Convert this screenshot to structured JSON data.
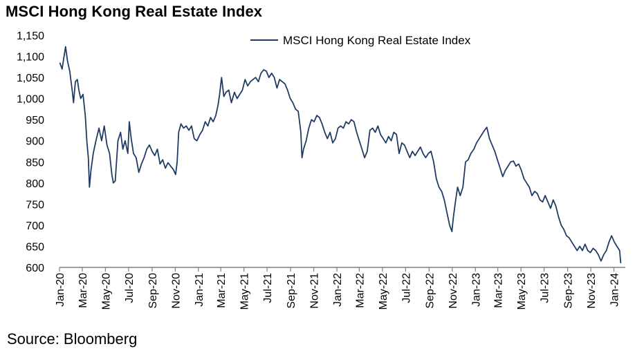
{
  "title": "MSCI Hong Kong Real Estate Index",
  "source": "Source: Bloomberg",
  "colors": {
    "series": "#1f3b64",
    "axis": "#7f7f7f"
  },
  "chart_data": {
    "type": "line",
    "title": "MSCI Hong Kong Real Estate Index",
    "xlabel": "",
    "ylabel": "",
    "ylim": [
      600,
      1150
    ],
    "yticks": [
      600,
      650,
      700,
      750,
      800,
      850,
      900,
      950,
      1000,
      1050,
      1100,
      1150
    ],
    "ytick_labels": [
      "600",
      "650",
      "700",
      "750",
      "800",
      "850",
      "900",
      "950",
      "1,000",
      "1,050",
      "1,100",
      "1,150"
    ],
    "xlim": [
      "2020-01-01",
      "2024-01-31"
    ],
    "xtick_labels": [
      "Jan-20",
      "Mar-20",
      "May-20",
      "Jul-20",
      "Sep-20",
      "Nov-20",
      "Jan-21",
      "Mar-21",
      "May-21",
      "Jul-21",
      "Sep-21",
      "Nov-21",
      "Jan-22",
      "Mar-22",
      "May-22",
      "Jul-22",
      "Sep-22",
      "Nov-22",
      "Jan-23",
      "Mar-23",
      "May-23",
      "Jul-23",
      "Sep-23",
      "Nov-23",
      "Jan-24"
    ],
    "xtick_dates": [
      "2020-01-01",
      "2020-03-01",
      "2020-05-01",
      "2020-07-01",
      "2020-09-01",
      "2020-11-01",
      "2021-01-01",
      "2021-03-01",
      "2021-05-01",
      "2021-07-01",
      "2021-09-01",
      "2021-11-01",
      "2022-01-01",
      "2022-03-01",
      "2022-05-01",
      "2022-07-01",
      "2022-09-01",
      "2022-11-01",
      "2023-01-01",
      "2023-03-01",
      "2023-05-01",
      "2023-07-01",
      "2023-09-01",
      "2023-11-01",
      "2024-01-01"
    ],
    "legend": "top-right",
    "grid": false,
    "series": [
      {
        "name": "MSCI Hong Kong Real Estate Index",
        "points": [
          [
            "2020-01-02",
            1085
          ],
          [
            "2020-01-08",
            1070
          ],
          [
            "2020-01-13",
            1100
          ],
          [
            "2020-01-17",
            1123
          ],
          [
            "2020-01-22",
            1090
          ],
          [
            "2020-01-28",
            1065
          ],
          [
            "2020-02-04",
            1015
          ],
          [
            "2020-02-07",
            990
          ],
          [
            "2020-02-12",
            1040
          ],
          [
            "2020-02-17",
            1045
          ],
          [
            "2020-02-21",
            1020
          ],
          [
            "2020-02-26",
            1000
          ],
          [
            "2020-03-03",
            1010
          ],
          [
            "2020-03-09",
            960
          ],
          [
            "2020-03-13",
            900
          ],
          [
            "2020-03-17",
            860
          ],
          [
            "2020-03-20",
            790
          ],
          [
            "2020-03-24",
            830
          ],
          [
            "2020-03-30",
            870
          ],
          [
            "2020-04-06",
            900
          ],
          [
            "2020-04-14",
            930
          ],
          [
            "2020-04-21",
            900
          ],
          [
            "2020-04-28",
            935
          ],
          [
            "2020-05-05",
            890
          ],
          [
            "2020-05-12",
            870
          ],
          [
            "2020-05-18",
            820
          ],
          [
            "2020-05-22",
            800
          ],
          [
            "2020-05-27",
            805
          ],
          [
            "2020-06-03",
            900
          ],
          [
            "2020-06-10",
            920
          ],
          [
            "2020-06-16",
            880
          ],
          [
            "2020-06-22",
            900
          ],
          [
            "2020-06-29",
            870
          ],
          [
            "2020-07-03",
            945
          ],
          [
            "2020-07-08",
            905
          ],
          [
            "2020-07-14",
            870
          ],
          [
            "2020-07-21",
            860
          ],
          [
            "2020-07-28",
            825
          ],
          [
            "2020-08-04",
            845
          ],
          [
            "2020-08-11",
            860
          ],
          [
            "2020-08-18",
            880
          ],
          [
            "2020-08-25",
            890
          ],
          [
            "2020-09-01",
            875
          ],
          [
            "2020-09-08",
            865
          ],
          [
            "2020-09-15",
            880
          ],
          [
            "2020-09-22",
            845
          ],
          [
            "2020-09-29",
            855
          ],
          [
            "2020-10-06",
            835
          ],
          [
            "2020-10-13",
            848
          ],
          [
            "2020-10-20",
            840
          ],
          [
            "2020-10-27",
            832
          ],
          [
            "2020-11-02",
            820
          ],
          [
            "2020-11-06",
            850
          ],
          [
            "2020-11-10",
            920
          ],
          [
            "2020-11-16",
            940
          ],
          [
            "2020-11-23",
            930
          ],
          [
            "2020-11-30",
            935
          ],
          [
            "2020-12-07",
            925
          ],
          [
            "2020-12-14",
            935
          ],
          [
            "2020-12-21",
            905
          ],
          [
            "2020-12-28",
            900
          ],
          [
            "2021-01-05",
            915
          ],
          [
            "2021-01-12",
            925
          ],
          [
            "2021-01-19",
            945
          ],
          [
            "2021-01-26",
            935
          ],
          [
            "2021-02-02",
            955
          ],
          [
            "2021-02-09",
            945
          ],
          [
            "2021-02-16",
            960
          ],
          [
            "2021-02-22",
            985
          ],
          [
            "2021-02-26",
            1010
          ],
          [
            "2021-03-03",
            1050
          ],
          [
            "2021-03-09",
            1005
          ],
          [
            "2021-03-15",
            1015
          ],
          [
            "2021-03-22",
            1020
          ],
          [
            "2021-03-29",
            990
          ],
          [
            "2021-04-06",
            1015
          ],
          [
            "2021-04-13",
            1000
          ],
          [
            "2021-04-20",
            1010
          ],
          [
            "2021-04-27",
            1020
          ],
          [
            "2021-05-04",
            1045
          ],
          [
            "2021-05-11",
            1030
          ],
          [
            "2021-05-18",
            1040
          ],
          [
            "2021-05-25",
            1045
          ],
          [
            "2021-06-01",
            1050
          ],
          [
            "2021-06-08",
            1040
          ],
          [
            "2021-06-15",
            1060
          ],
          [
            "2021-06-22",
            1068
          ],
          [
            "2021-06-29",
            1065
          ],
          [
            "2021-07-06",
            1050
          ],
          [
            "2021-07-13",
            1060
          ],
          [
            "2021-07-20",
            1050
          ],
          [
            "2021-07-27",
            1025
          ],
          [
            "2021-08-03",
            1045
          ],
          [
            "2021-08-10",
            1040
          ],
          [
            "2021-08-17",
            1035
          ],
          [
            "2021-08-24",
            1020
          ],
          [
            "2021-08-31",
            1000
          ],
          [
            "2021-09-07",
            990
          ],
          [
            "2021-09-14",
            975
          ],
          [
            "2021-09-21",
            970
          ],
          [
            "2021-09-24",
            950
          ],
          [
            "2021-09-28",
            920
          ],
          [
            "2021-10-01",
            860
          ],
          [
            "2021-10-05",
            880
          ],
          [
            "2021-10-12",
            900
          ],
          [
            "2021-10-19",
            930
          ],
          [
            "2021-10-26",
            950
          ],
          [
            "2021-11-02",
            945
          ],
          [
            "2021-11-09",
            960
          ],
          [
            "2021-11-16",
            955
          ],
          [
            "2021-11-23",
            940
          ],
          [
            "2021-11-30",
            920
          ],
          [
            "2021-12-07",
            905
          ],
          [
            "2021-12-14",
            920
          ],
          [
            "2021-12-21",
            895
          ],
          [
            "2021-12-28",
            905
          ],
          [
            "2022-01-04",
            930
          ],
          [
            "2022-01-11",
            935
          ],
          [
            "2022-01-18",
            930
          ],
          [
            "2022-01-25",
            945
          ],
          [
            "2022-02-01",
            940
          ],
          [
            "2022-02-08",
            950
          ],
          [
            "2022-02-15",
            945
          ],
          [
            "2022-02-22",
            920
          ],
          [
            "2022-03-01",
            900
          ],
          [
            "2022-03-08",
            880
          ],
          [
            "2022-03-15",
            860
          ],
          [
            "2022-03-22",
            875
          ],
          [
            "2022-03-29",
            925
          ],
          [
            "2022-04-05",
            930
          ],
          [
            "2022-04-12",
            920
          ],
          [
            "2022-04-19",
            935
          ],
          [
            "2022-04-26",
            915
          ],
          [
            "2022-05-03",
            905
          ],
          [
            "2022-05-10",
            895
          ],
          [
            "2022-05-17",
            910
          ],
          [
            "2022-05-24",
            900
          ],
          [
            "2022-05-31",
            920
          ],
          [
            "2022-06-07",
            915
          ],
          [
            "2022-06-14",
            870
          ],
          [
            "2022-06-21",
            895
          ],
          [
            "2022-06-28",
            890
          ],
          [
            "2022-07-05",
            875
          ],
          [
            "2022-07-12",
            860
          ],
          [
            "2022-07-19",
            875
          ],
          [
            "2022-07-26",
            865
          ],
          [
            "2022-08-02",
            875
          ],
          [
            "2022-08-09",
            885
          ],
          [
            "2022-08-16",
            870
          ],
          [
            "2022-08-23",
            860
          ],
          [
            "2022-08-30",
            870
          ],
          [
            "2022-09-06",
            875
          ],
          [
            "2022-09-13",
            850
          ],
          [
            "2022-09-20",
            810
          ],
          [
            "2022-09-27",
            790
          ],
          [
            "2022-10-04",
            780
          ],
          [
            "2022-10-11",
            760
          ],
          [
            "2022-10-18",
            730
          ],
          [
            "2022-10-25",
            700
          ],
          [
            "2022-10-31",
            685
          ],
          [
            "2022-11-04",
            720
          ],
          [
            "2022-11-10",
            760
          ],
          [
            "2022-11-15",
            790
          ],
          [
            "2022-11-22",
            770
          ],
          [
            "2022-11-29",
            790
          ],
          [
            "2022-12-06",
            850
          ],
          [
            "2022-12-13",
            855
          ],
          [
            "2022-12-20",
            870
          ],
          [
            "2022-12-28",
            880
          ],
          [
            "2023-01-04",
            895
          ],
          [
            "2023-01-11",
            905
          ],
          [
            "2023-01-18",
            915
          ],
          [
            "2023-01-25",
            925
          ],
          [
            "2023-01-31",
            932
          ],
          [
            "2023-02-07",
            905
          ],
          [
            "2023-02-14",
            890
          ],
          [
            "2023-02-21",
            875
          ],
          [
            "2023-02-28",
            855
          ],
          [
            "2023-03-07",
            835
          ],
          [
            "2023-03-14",
            815
          ],
          [
            "2023-03-21",
            830
          ],
          [
            "2023-03-28",
            840
          ],
          [
            "2023-04-04",
            850
          ],
          [
            "2023-04-11",
            852
          ],
          [
            "2023-04-18",
            840
          ],
          [
            "2023-04-25",
            845
          ],
          [
            "2023-05-02",
            830
          ],
          [
            "2023-05-09",
            810
          ],
          [
            "2023-05-16",
            800
          ],
          [
            "2023-05-23",
            790
          ],
          [
            "2023-05-30",
            770
          ],
          [
            "2023-06-06",
            780
          ],
          [
            "2023-06-13",
            775
          ],
          [
            "2023-06-20",
            760
          ],
          [
            "2023-06-27",
            755
          ],
          [
            "2023-07-04",
            770
          ],
          [
            "2023-07-11",
            755
          ],
          [
            "2023-07-18",
            740
          ],
          [
            "2023-07-25",
            760
          ],
          [
            "2023-08-01",
            745
          ],
          [
            "2023-08-08",
            720
          ],
          [
            "2023-08-15",
            700
          ],
          [
            "2023-08-22",
            690
          ],
          [
            "2023-08-29",
            675
          ],
          [
            "2023-09-05",
            670
          ],
          [
            "2023-09-12",
            660
          ],
          [
            "2023-09-19",
            650
          ],
          [
            "2023-09-26",
            640
          ],
          [
            "2023-10-03",
            650
          ],
          [
            "2023-10-10",
            640
          ],
          [
            "2023-10-17",
            655
          ],
          [
            "2023-10-24",
            640
          ],
          [
            "2023-10-31",
            635
          ],
          [
            "2023-11-07",
            645
          ],
          [
            "2023-11-14",
            640
          ],
          [
            "2023-11-21",
            630
          ],
          [
            "2023-11-28",
            615
          ],
          [
            "2023-12-05",
            630
          ],
          [
            "2023-12-12",
            640
          ],
          [
            "2023-12-19",
            660
          ],
          [
            "2023-12-26",
            675
          ],
          [
            "2024-01-02",
            660
          ],
          [
            "2024-01-09",
            650
          ],
          [
            "2024-01-16",
            640
          ],
          [
            "2024-01-19",
            610
          ]
        ]
      }
    ]
  }
}
